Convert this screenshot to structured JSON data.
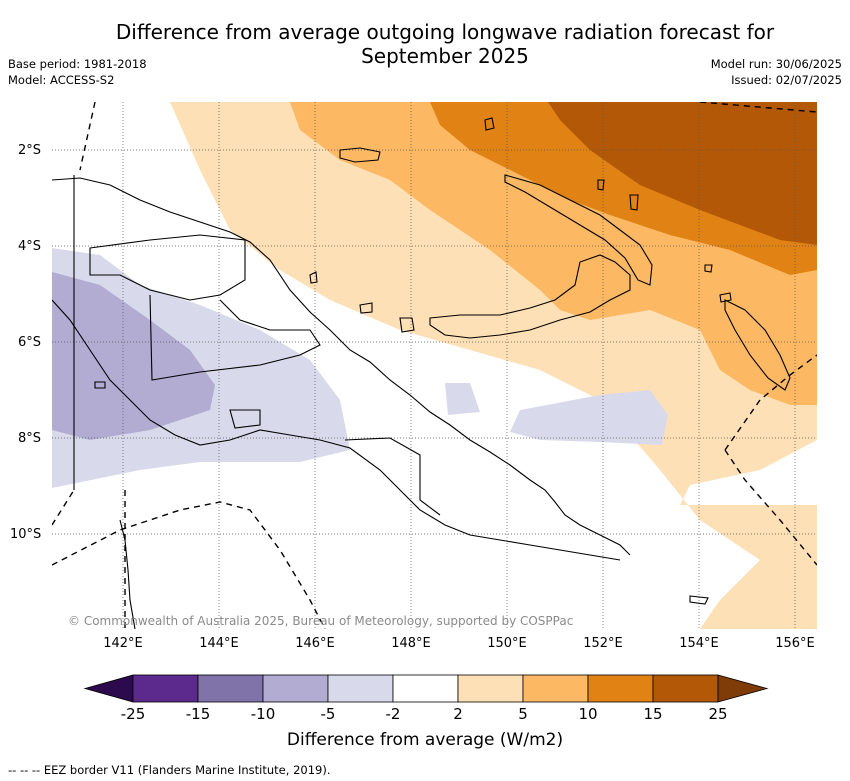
{
  "title_line1": "Difference from average outgoing longwave radiation forecast for",
  "title_line2": "September 2025",
  "base_period": "Base period: 1981-2018",
  "model": "Model: ACCESS-S2",
  "model_run": "Model run: 30/06/2025",
  "issued": "Issued: 02/07/2025",
  "lat_labels": [
    "2°S",
    "4°S",
    "6°S",
    "8°S",
    "10°S"
  ],
  "lon_labels": [
    "142°E",
    "144°E",
    "146°E",
    "148°E",
    "150°E",
    "152°E",
    "154°E",
    "156°E"
  ],
  "copyright": "© Commonwealth of Australia 2025, Bureau of Meteorology, supported by COSPPac",
  "colorbar": {
    "ticks": [
      "-25",
      "-15",
      "-10",
      "-5",
      "-2",
      "2",
      "5",
      "10",
      "15",
      "25"
    ],
    "colors": {
      "below_-25": "#2d0a4e",
      "-25_-15": "#5b2a8c",
      "-15_-10": "#8073aa",
      "-10_-5": "#b2abd2",
      "-5_-2": "#d8daeb",
      "-2_2": "#ffffff",
      "2_5": "#fee0b6",
      "5_10": "#fdb863",
      "10_15": "#e08214",
      "15_25": "#b35806",
      "above_25": "#7f3b08"
    },
    "label": "Difference from average (W/m2)"
  },
  "footnote": "-- -- -- EEZ border V11 (Flanders Marine Institute, 2019)."
}
